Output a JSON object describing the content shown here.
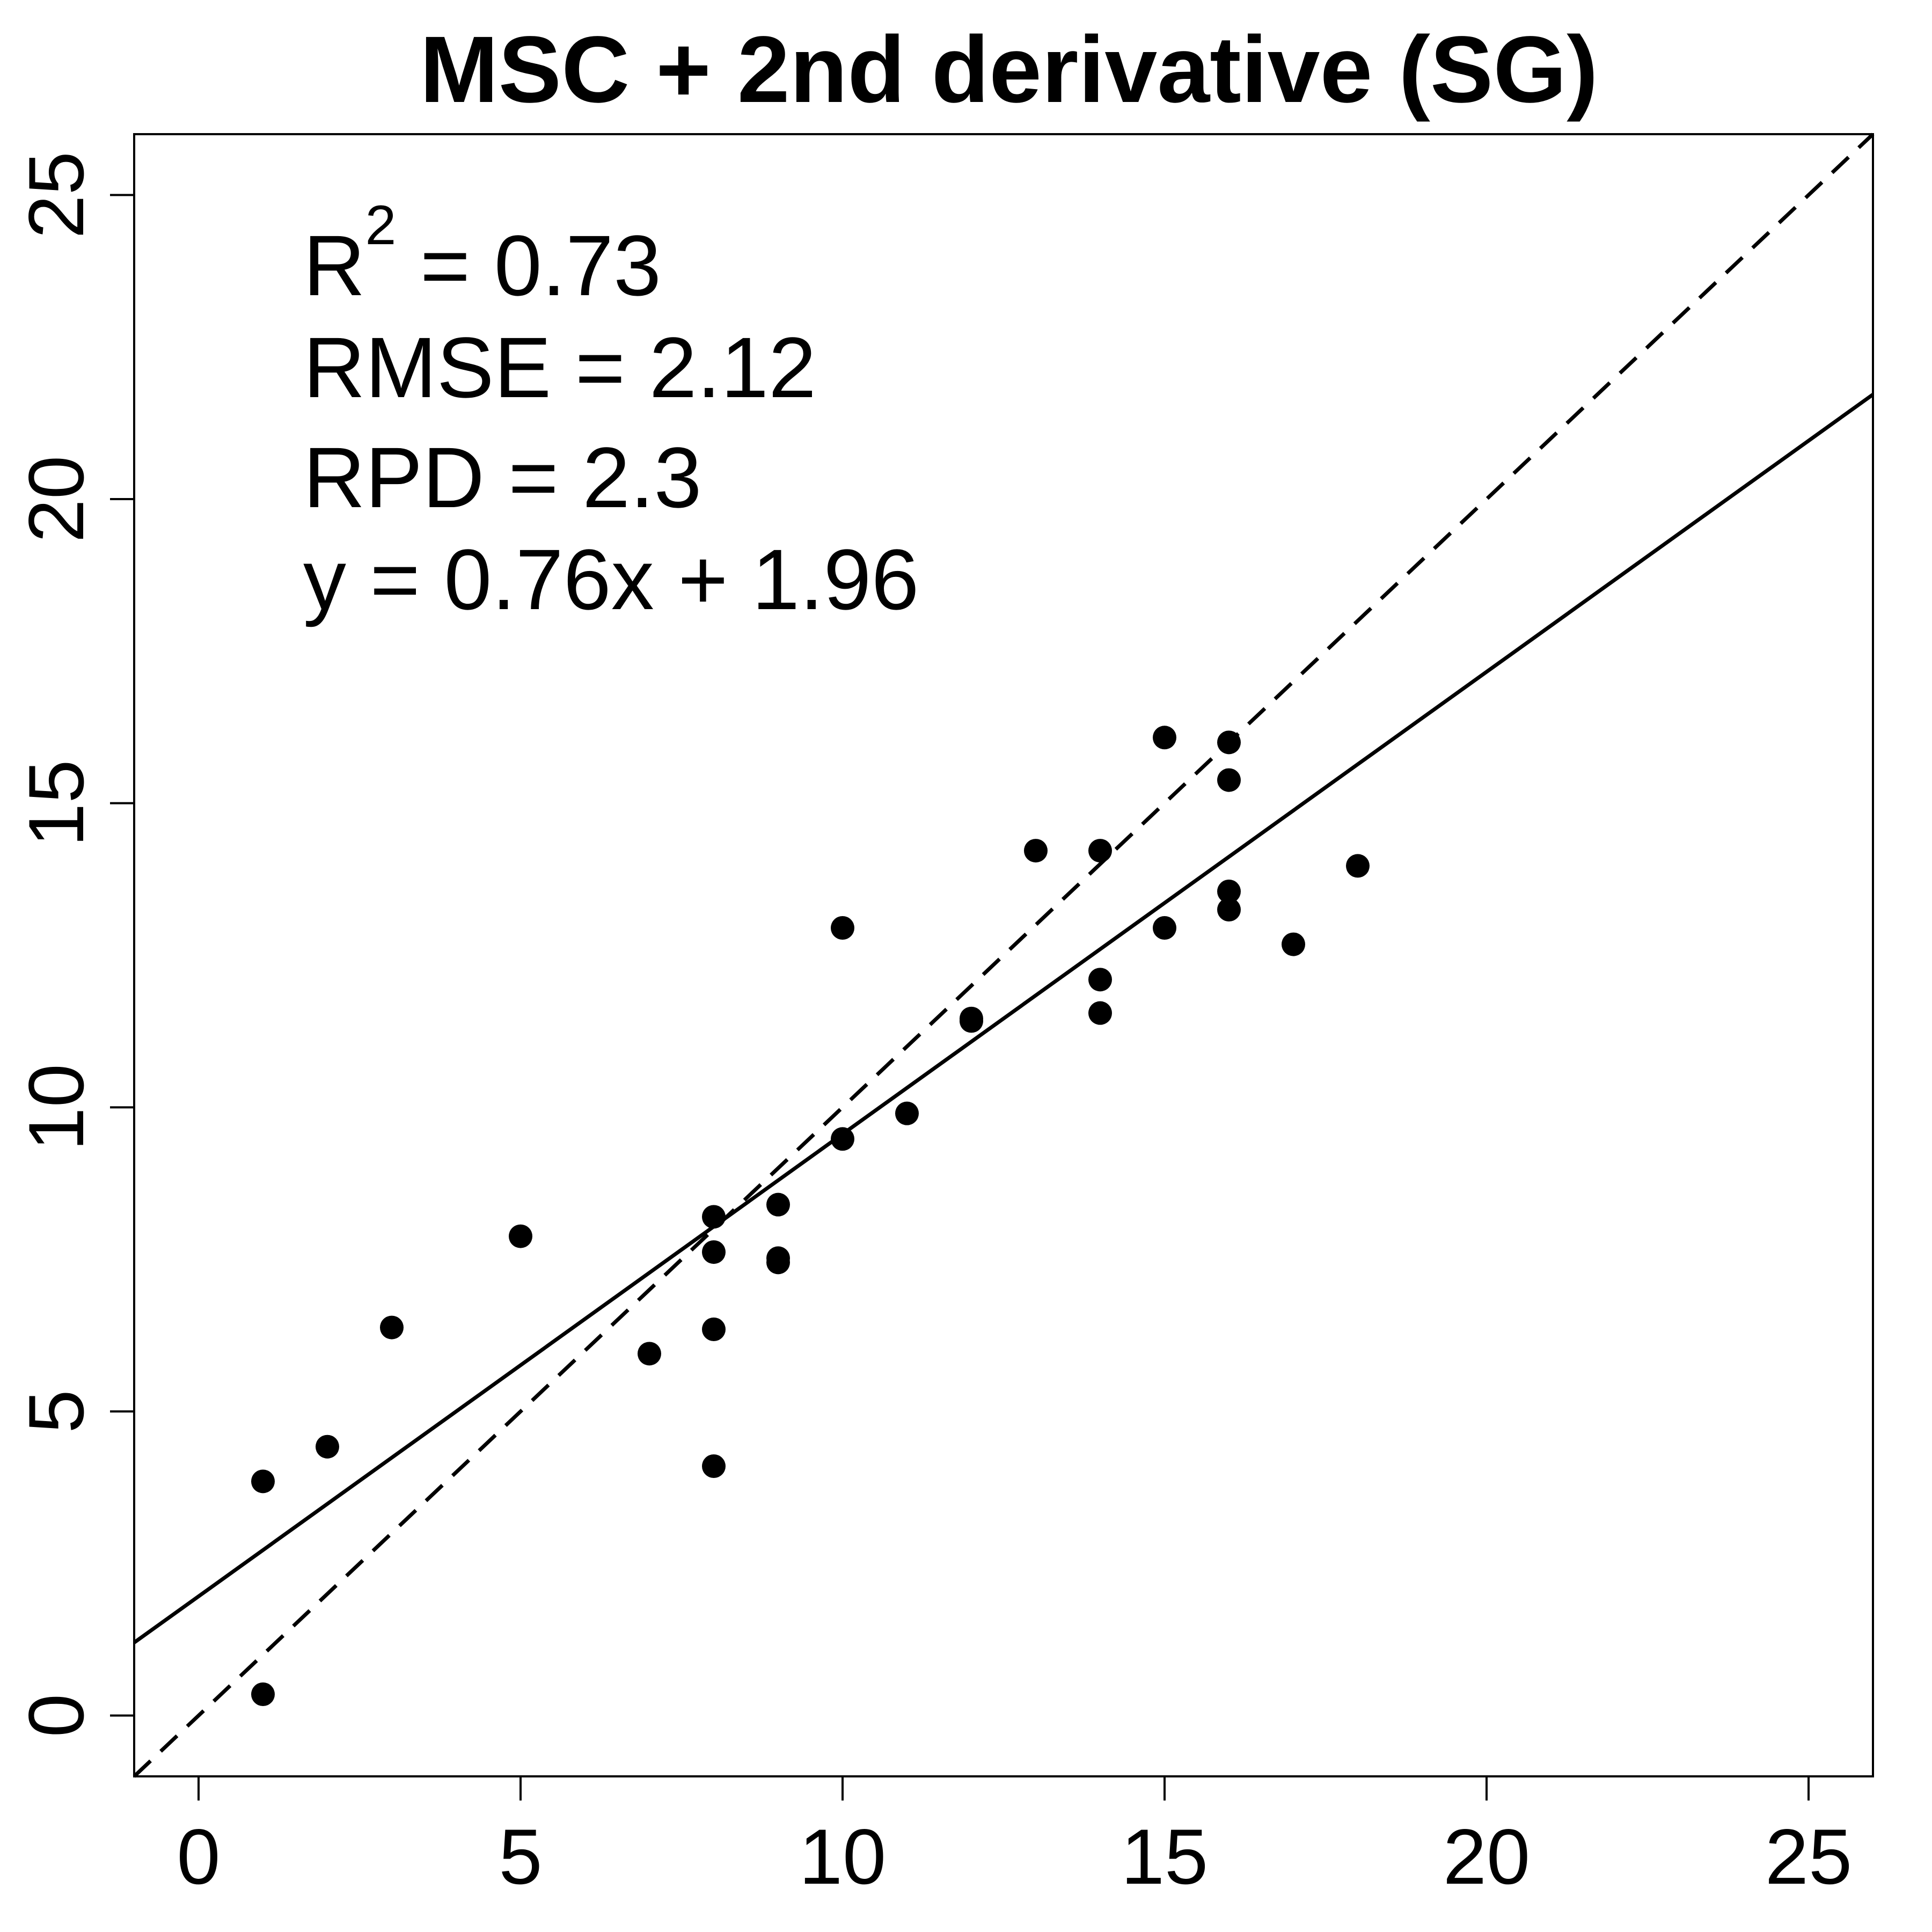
{
  "chart_data": {
    "type": "scatter",
    "title": "MSC + 2nd derivative (SG)",
    "xlabel": "",
    "ylabel": "",
    "xlim": [
      -1,
      26
    ],
    "ylim": [
      -1,
      26
    ],
    "x_ticks": [
      0,
      5,
      10,
      15,
      20,
      25
    ],
    "y_ticks": [
      0,
      5,
      10,
      15,
      20,
      25
    ],
    "grid": false,
    "legend": "none",
    "points": [
      {
        "x": 1,
        "y": 0.35
      },
      {
        "x": 1,
        "y": 3.85
      },
      {
        "x": 2,
        "y": 4.42
      },
      {
        "x": 3,
        "y": 6.38
      },
      {
        "x": 5,
        "y": 7.88
      },
      {
        "x": 7,
        "y": 5.95
      },
      {
        "x": 8,
        "y": 4.1
      },
      {
        "x": 8,
        "y": 6.35
      },
      {
        "x": 8,
        "y": 7.62
      },
      {
        "x": 8,
        "y": 8.2
      },
      {
        "x": 9,
        "y": 7.45
      },
      {
        "x": 9,
        "y": 7.52
      },
      {
        "x": 9,
        "y": 8.4
      },
      {
        "x": 10,
        "y": 9.48
      },
      {
        "x": 10,
        "y": 12.95
      },
      {
        "x": 11,
        "y": 9.9
      },
      {
        "x": 12,
        "y": 11.42
      },
      {
        "x": 12,
        "y": 11.46
      },
      {
        "x": 13,
        "y": 14.22
      },
      {
        "x": 14,
        "y": 11.55
      },
      {
        "x": 14,
        "y": 12.1
      },
      {
        "x": 14,
        "y": 14.22
      },
      {
        "x": 15,
        "y": 12.95
      },
      {
        "x": 15,
        "y": 16.08
      },
      {
        "x": 16,
        "y": 13.25
      },
      {
        "x": 16,
        "y": 13.55
      },
      {
        "x": 16,
        "y": 15.38
      },
      {
        "x": 16,
        "y": 16.0
      },
      {
        "x": 17,
        "y": 12.68
      },
      {
        "x": 18,
        "y": 13.97
      }
    ],
    "lines": [
      {
        "kind": "fit",
        "style": "solid",
        "slope": 0.76,
        "intercept": 1.96
      },
      {
        "kind": "identity",
        "style": "dashed",
        "slope": 1,
        "intercept": 0
      }
    ],
    "annotations": {
      "r2_label": "R",
      "r2_sup": "2",
      "r2_value": " = 0.73",
      "rmse": "RMSE = 2.12",
      "rpd": "RPD = 2.3",
      "equation": "y = 0.76x + 1.96"
    }
  }
}
